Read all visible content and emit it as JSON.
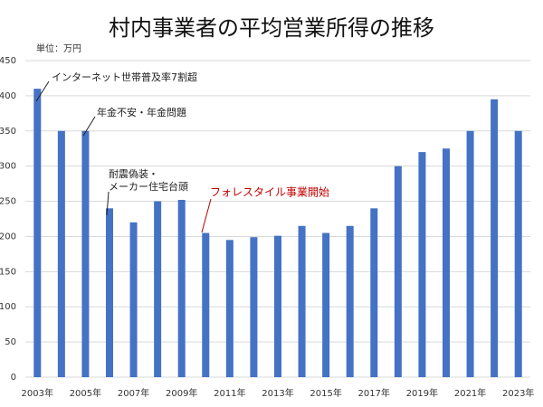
{
  "chart_data": {
    "type": "bar",
    "title": "村内事業者の平均営業所得の推移",
    "unit_label": "単位：万円",
    "categories": [
      "2003年",
      null,
      "2005年",
      null,
      "2007年",
      null,
      "2009年",
      null,
      "2011年",
      null,
      "2013年",
      null,
      "2015年",
      null,
      "2017年",
      null,
      "2019年",
      null,
      "2021年",
      null,
      "2023年"
    ],
    "values": [
      410,
      350,
      350,
      240,
      220,
      250,
      252,
      205,
      195,
      199,
      201,
      215,
      205,
      215,
      240,
      300,
      320,
      325,
      350,
      395,
      350
    ],
    "color": "#4472c4",
    "ylim": [
      0,
      450
    ],
    "yticks": [
      0,
      50,
      100,
      150,
      200,
      250,
      300,
      350,
      400,
      450
    ],
    "grid": true,
    "annotations": [
      {
        "text": [
          "インターネット世帯普及率7割超"
        ],
        "color": "#222222"
      },
      {
        "text": [
          "年金不安・年金問題"
        ],
        "color": "#222222"
      },
      {
        "text": [
          "耐震偽装・",
          "メーカー住宅台頭"
        ],
        "color": "#222222"
      },
      {
        "text": [
          "フォレスタイル事業開始"
        ],
        "color": "#c00000"
      }
    ]
  }
}
